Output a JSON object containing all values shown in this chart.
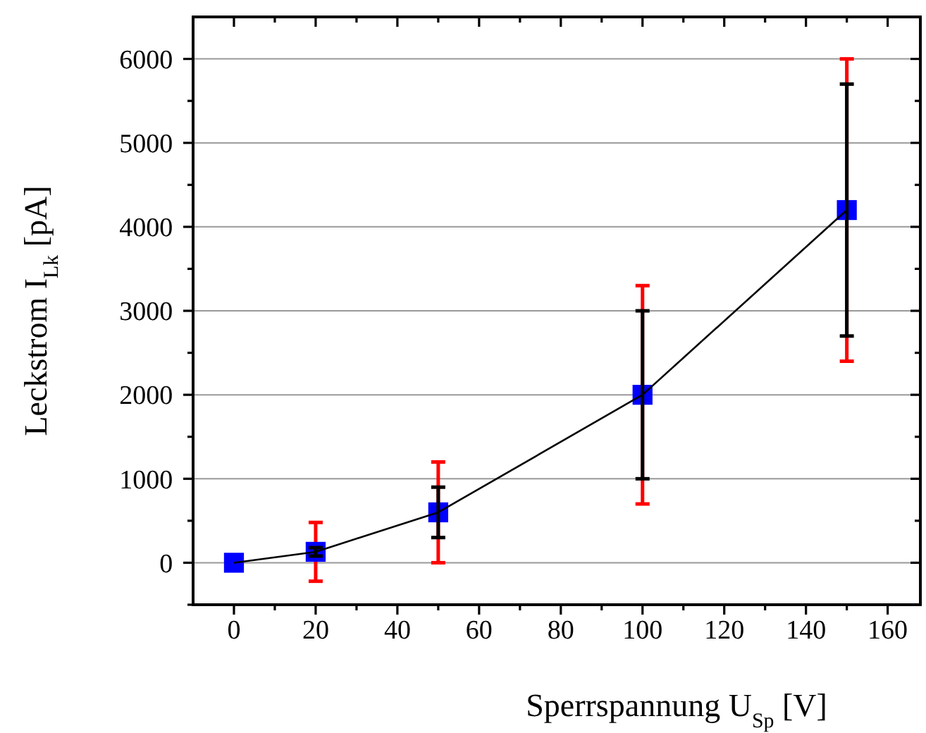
{
  "chart_data": {
    "type": "line",
    "xlabel": "Sperrspannung U$_{Sp}$ [V]",
    "ylabel": "Leckstrom I$_{Lk}$ [pA]",
    "x": [
      0,
      20,
      50,
      100,
      150
    ],
    "series": [
      {
        "type": "scatter",
        "marker": "square",
        "color": "#ff0000",
        "colors": [
          "#0000ff",
          "#0000ff",
          "#0000ff",
          "#0000ff",
          "#0000ff"
        ],
        "values": [
          0,
          130,
          600,
          2000,
          4200
        ],
        "errors": [
          null,
          350,
          600,
          1300,
          1800
        ]
      },
      {
        "marker": "none",
        "color": "#000000",
        "values": [
          0,
          130,
          600,
          2000,
          4200
        ],
        "errors": [
          null,
          50,
          300,
          1000,
          1500
        ]
      }
    ],
    "xlim": [
      -10,
      168
    ],
    "ylim": [
      -500,
      6500
    ],
    "xticks": [
      0,
      {
        "value": 10,
        "label": null
      },
      20,
      {
        "value": 30,
        "label": null
      },
      40,
      {
        "value": 50,
        "label": null
      },
      60,
      {
        "value": 70,
        "label": null
      },
      80,
      {
        "value": 90,
        "label": null
      },
      100,
      {
        "value": 110,
        "label": null
      },
      120,
      {
        "value": 130,
        "label": null
      },
      140,
      {
        "value": 150,
        "label": null
      },
      160
    ],
    "yticks": [
      {
        "value": -500,
        "label": null
      },
      0,
      {
        "value": 500,
        "label": null
      },
      1000,
      {
        "value": 1500,
        "label": null
      },
      2000,
      {
        "value": 2500,
        "label": null
      },
      3000,
      {
        "value": 3500,
        "label": null
      },
      4000,
      {
        "value": 4500,
        "label": null
      },
      5000,
      {
        "value": 5500,
        "label": null
      },
      6000
    ],
    "grid": "y",
    "line_style": "solid"
  }
}
